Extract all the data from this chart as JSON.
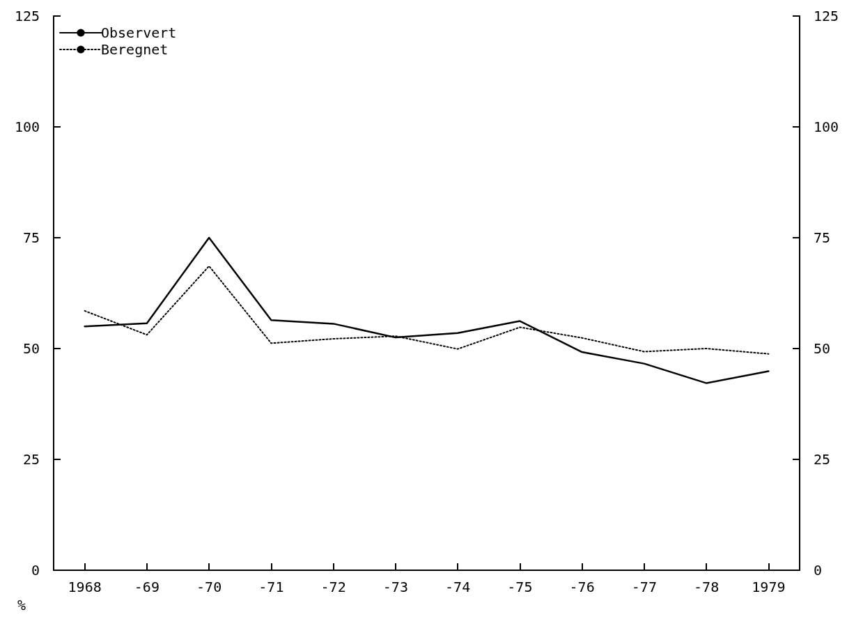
{
  "chart_data": {
    "type": "line",
    "ylabel": "%",
    "categories": [
      "1968",
      "-69",
      "-70",
      "-71",
      "-72",
      "-73",
      "-74",
      "-75",
      "-76",
      "-77",
      "-78",
      "1979"
    ],
    "series": [
      {
        "name": "Observert",
        "color": "#000000",
        "line_style": "solid",
        "values": [
          55.0,
          55.7,
          75.0,
          56.4,
          55.6,
          52.5,
          53.5,
          56.2,
          49.2,
          46.6,
          42.2,
          44.9
        ]
      },
      {
        "name": "Beregnet",
        "color": "#000000",
        "line_style": "dotted",
        "values": [
          58.5,
          53.1,
          68.6,
          51.2,
          52.2,
          52.8,
          49.9,
          54.8,
          52.4,
          49.3,
          50.0,
          48.8
        ]
      }
    ],
    "ylim": [
      0,
      125
    ],
    "yticks": [
      0,
      25,
      50,
      75,
      100,
      125
    ],
    "y2lim": [
      0,
      125
    ],
    "y2ticks": [
      0,
      25,
      50,
      75,
      100,
      125
    ],
    "grid": false,
    "legend": "top left",
    "marker": "none"
  }
}
